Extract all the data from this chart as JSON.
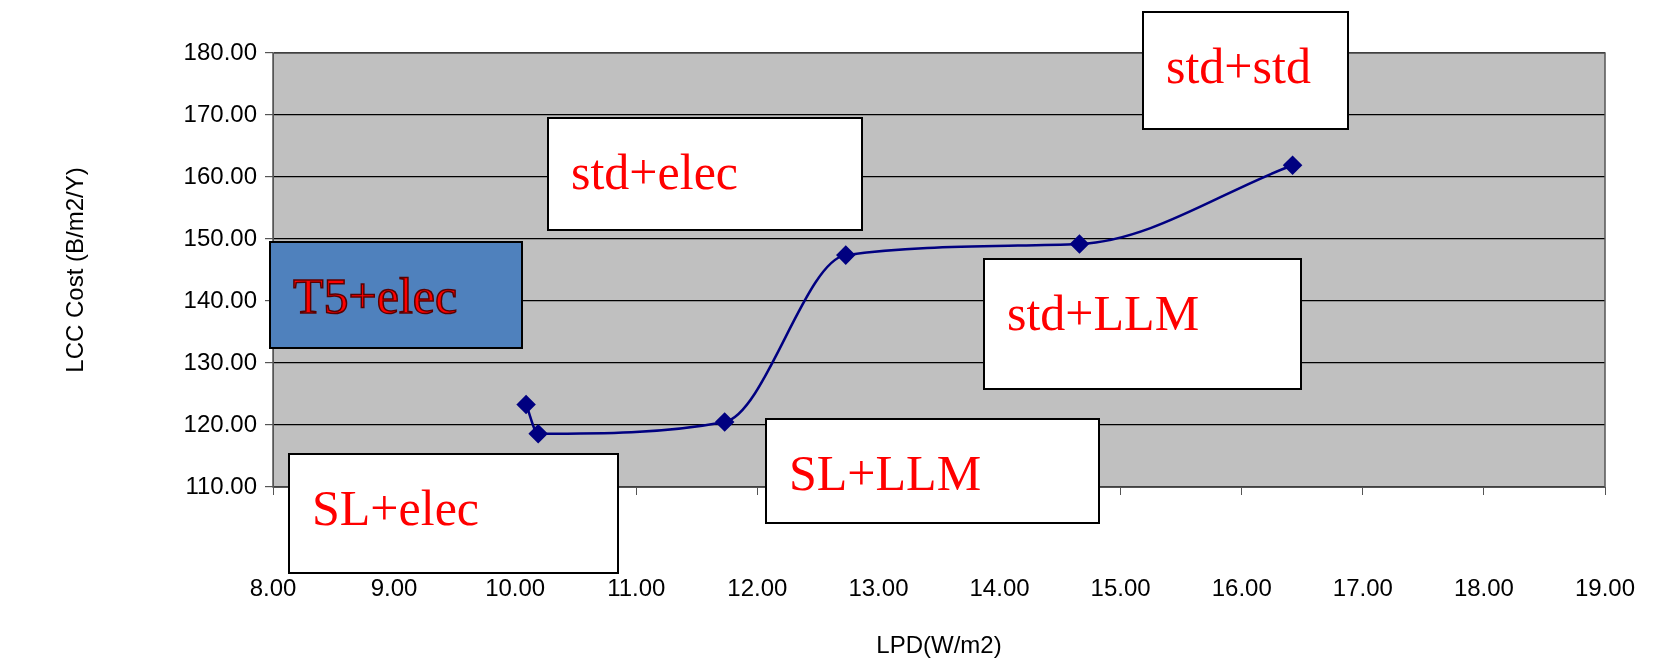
{
  "chart_data": {
    "type": "line",
    "xlabel": "LPD(W/m2)",
    "ylabel": "LCC Cost (B/m2/Y)",
    "x": [
      10.09,
      10.19,
      11.73,
      12.73,
      14.66,
      16.42
    ],
    "series": [
      {
        "color": "#000080",
        "values": [
          123.3,
          118.6,
          120.5,
          147.4,
          149.2,
          161.9
        ]
      }
    ],
    "xlim": [
      8,
      19
    ],
    "xticks": [
      {
        "value": 8,
        "label": "8.00"
      },
      {
        "value": 9,
        "label": "9.00"
      },
      {
        "value": 10,
        "label": "10.00"
      },
      {
        "value": 11,
        "label": "11.00"
      },
      {
        "value": 12,
        "label": "12.00"
      },
      {
        "value": 13,
        "label": "13.00"
      },
      {
        "value": 14,
        "label": "14.00"
      },
      {
        "value": 15,
        "label": "15.00"
      },
      {
        "value": 16,
        "label": "16.00"
      },
      {
        "value": 17,
        "label": "17.00"
      },
      {
        "value": 18,
        "label": "18.00"
      },
      {
        "value": 19,
        "label": "19.00"
      }
    ],
    "ylim": [
      110,
      180
    ],
    "yticks": [
      {
        "value": 110,
        "label": "110.00"
      },
      {
        "value": 120,
        "label": "120.00"
      },
      {
        "value": 130,
        "label": "130.00"
      },
      {
        "value": 140,
        "label": "140.00"
      },
      {
        "value": 150,
        "label": "150.00"
      },
      {
        "value": 160,
        "label": "160.00"
      },
      {
        "value": 170,
        "label": "170.00"
      },
      {
        "value": 180,
        "label": "180.00"
      }
    ],
    "grid": "y",
    "legend": false,
    "marker": "diamond",
    "line_style": "solid",
    "annotations": [
      "std+std",
      "std+elec",
      "T5+elec",
      "std+LLM",
      "SL+LLM",
      "SL+elec"
    ]
  }
}
